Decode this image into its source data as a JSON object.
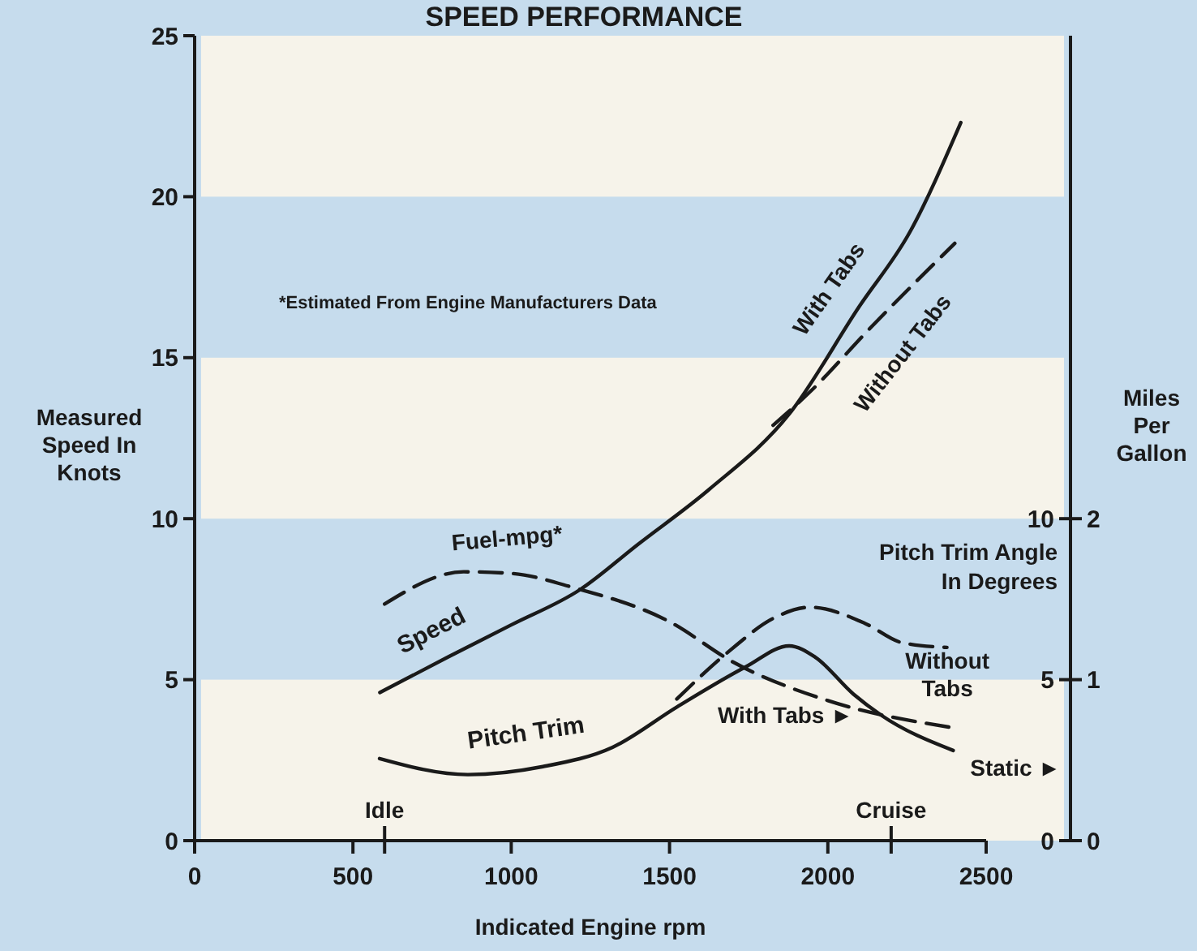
{
  "chart_data": {
    "type": "line",
    "title": "SPEED PERFORMANCE",
    "xlabel": "Indicated Engine rpm",
    "ylabel": "Measured Speed In Knots",
    "y2label": "Pitch Trim Angle In Degrees",
    "y3label": "Miles Per Gallon",
    "xlim": [
      0,
      2500
    ],
    "xticks": [
      0,
      500,
      1000,
      1500,
      2000,
      2500
    ],
    "ylim": [
      0,
      25
    ],
    "yticks": [
      0,
      5,
      10,
      15,
      20,
      25
    ],
    "y2lim": [
      0,
      25
    ],
    "y2ticks": [
      0,
      5,
      10
    ],
    "y3lim": [
      0,
      5
    ],
    "y3ticks": [
      0,
      1,
      2
    ],
    "grid": false,
    "bands": [
      {
        "axis": "y",
        "from": 0,
        "to": 5,
        "color": "#f6f3ea"
      },
      {
        "axis": "y",
        "from": 10,
        "to": 15,
        "color": "#f6f3ea"
      },
      {
        "axis": "y",
        "from": 20,
        "to": 25,
        "color": "#f6f3ea"
      }
    ],
    "ref_lines": [
      {
        "axis": "x",
        "value": 600,
        "label": "Idle"
      },
      {
        "axis": "x",
        "value": 2200,
        "label": "Cruise"
      }
    ],
    "series": [
      {
        "name": "With Tabs",
        "color": "#1a1a1a",
        "line_style": "solid",
        "x": [
          585,
          800,
          1000,
          1218,
          1400,
          1624,
          1878,
          2100,
          2259,
          2420
        ],
        "values": [
          4.6,
          5.7,
          6.7,
          7.8,
          9.2,
          10.9,
          13.25,
          16.6,
          18.9,
          22.3
        ]
      },
      {
        "name": "Without Tabs",
        "color": "#1a1a1a",
        "line_style": "dashed",
        "x": [
          1827,
          1950,
          2132,
          2401
        ],
        "values": [
          12.9,
          14.0,
          15.9,
          18.55
        ]
      },
      {
        "name": "Fuel-mpg*",
        "color": "#1a1a1a",
        "line_style": "dashed",
        "axis": "y3",
        "x": [
          600,
          850,
          1000,
          1200,
          1500,
          1700,
          2000,
          2400
        ],
        "values": [
          1.47,
          1.67,
          1.66,
          1.57,
          1.36,
          1.11,
          0.87,
          0.7
        ]
      },
      {
        "name": "With Tabs ►",
        "color": "#1a1a1a",
        "line_style": "solid",
        "axis": "y2",
        "x": [
          584,
          863,
          1100,
          1320,
          1523,
          1741,
          1878,
          1960,
          2081,
          2168,
          2396
        ],
        "values": [
          2.55,
          2.05,
          2.3,
          2.9,
          4.15,
          5.4,
          6.05,
          5.7,
          4.55,
          3.9,
          2.8
        ]
      },
      {
        "name": "Without Tabs",
        "color": "#1a1a1a",
        "line_style": "dashed",
        "axis": "y2",
        "x": [
          1523,
          1690,
          1827,
          1944,
          2117,
          2234,
          2376
        ],
        "values": [
          4.4,
          5.9,
          6.9,
          7.25,
          6.75,
          6.15,
          6.0
        ]
      }
    ],
    "annotations": [
      {
        "text": "Speed",
        "x": 800,
        "y": 5.7
      },
      {
        "text": "Pitch Trim",
        "x": 1050,
        "y": 2.15
      },
      "*Estimated From Engine Manufacturers Data",
      "Static ►"
    ]
  }
}
